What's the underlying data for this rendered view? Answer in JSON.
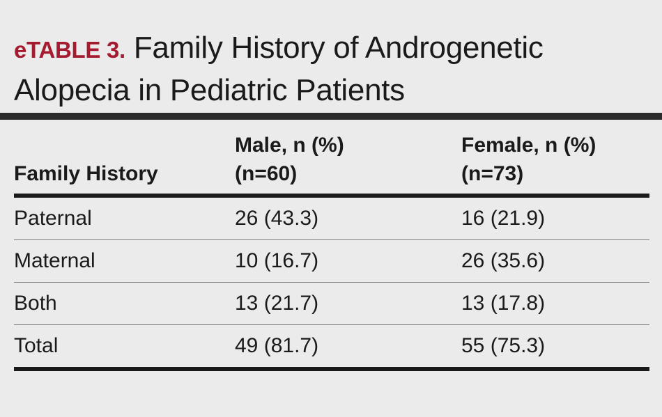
{
  "title": {
    "label": "eTABLE 3.",
    "text": "Family History of Androgenetic Alopecia in Pediatric Patients"
  },
  "table": {
    "headers": [
      {
        "lines": [
          "Family History"
        ]
      },
      {
        "lines": [
          "Male, n (%)",
          "(n=60)"
        ]
      },
      {
        "lines": [
          "Female, n (%)",
          "(n=73)"
        ]
      }
    ],
    "rows": [
      [
        "Paternal",
        "26 (43.3)",
        "16 (21.9)"
      ],
      [
        "Maternal",
        "10 (16.7)",
        "26 (35.6)"
      ],
      [
        "Both",
        "13 (21.7)",
        "13 (17.8)"
      ],
      [
        "Total",
        "49 (81.7)",
        "55 (75.3)"
      ]
    ]
  },
  "colors": {
    "background": "#ebebeb",
    "label": "#a51c30",
    "text": "#1a1a1a",
    "rule": "#2b2b2b"
  }
}
